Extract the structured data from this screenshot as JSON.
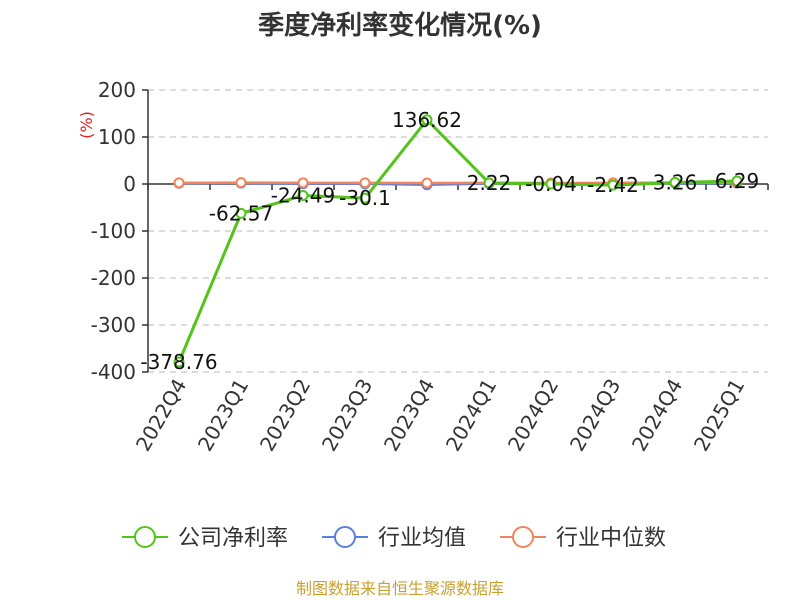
{
  "chart_data": {
    "type": "line",
    "title": "季度净利率变化情况(%)",
    "ylabel": "(%)",
    "xlabel": "",
    "ylim": [
      -400,
      200
    ],
    "yticks": [
      200,
      100,
      0,
      -100,
      -200,
      -300,
      -400
    ],
    "grid": true,
    "legend_position": "bottom",
    "categories": [
      "2022Q4",
      "2023Q1",
      "2023Q2",
      "2023Q3",
      "2023Q4",
      "2024Q1",
      "2024Q2",
      "2024Q3",
      "2024Q4",
      "2025Q1"
    ],
    "series": [
      {
        "name": "公司净利率",
        "color": "#52c41a",
        "values": [
          -378.76,
          -62.57,
          -24.49,
          -30.1,
          136.62,
          2.22,
          -0.04,
          -2.42,
          3.26,
          6.29
        ],
        "labels": [
          "-378.76",
          "-62.57",
          "-24.49",
          "-30.1",
          "136.62",
          "2.22",
          "-0.04",
          "-2.42",
          "3.26",
          "6.29"
        ]
      },
      {
        "name": "行业均值",
        "color": "#5b7fde",
        "values": [
          1.5,
          2.0,
          0.5,
          0.5,
          -1.5,
          1.0,
          0.8,
          1.0,
          1.5,
          2.0
        ]
      },
      {
        "name": "行业中位数",
        "color": "#f0845a",
        "values": [
          2.5,
          3.0,
          2.5,
          2.5,
          2.0,
          2.5,
          2.0,
          2.5,
          3.0,
          3.0
        ]
      }
    ]
  },
  "footer": "制图数据来自恒生聚源数据库"
}
